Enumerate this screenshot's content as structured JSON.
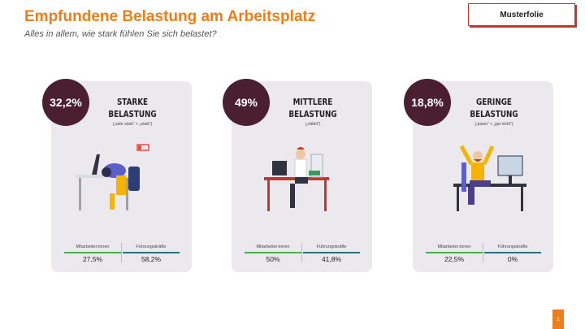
{
  "header": {
    "title": "Empfundene Belastung am Arbeitsplatz",
    "subtitle": "Alles in allem, wie stark fühlen Sie sich belastet?",
    "badge": "Musterfolie"
  },
  "cards": [
    {
      "percent": "32,2%",
      "title_lines": [
        "STARKE",
        "BELASTUNG"
      ],
      "note": "(„sehr stark“ + „stark“)",
      "groups": [
        {
          "label": "Mitarbeiter:innen",
          "value": "27,5%"
        },
        {
          "label": "Führungskräfte",
          "value": "58,2%"
        }
      ]
    },
    {
      "percent": "49%",
      "title_lines": [
        "MITTLERE",
        "BELASTUNG"
      ],
      "note": "(„mittel“)",
      "groups": [
        {
          "label": "Mitarbeiter:innen",
          "value": "50%"
        },
        {
          "label": "Führungskräfte",
          "value": "41,8%"
        }
      ]
    },
    {
      "percent": "18,8%",
      "title_lines": [
        "GERINGE",
        "BELASTUNG"
      ],
      "note": "(„kaum“ + „gar nicht“)",
      "groups": [
        {
          "label": "Mitarbeiter:innen",
          "value": "22,5%"
        },
        {
          "label": "Führungskräfte",
          "value": "0%"
        }
      ]
    }
  ],
  "page_number": "1"
}
